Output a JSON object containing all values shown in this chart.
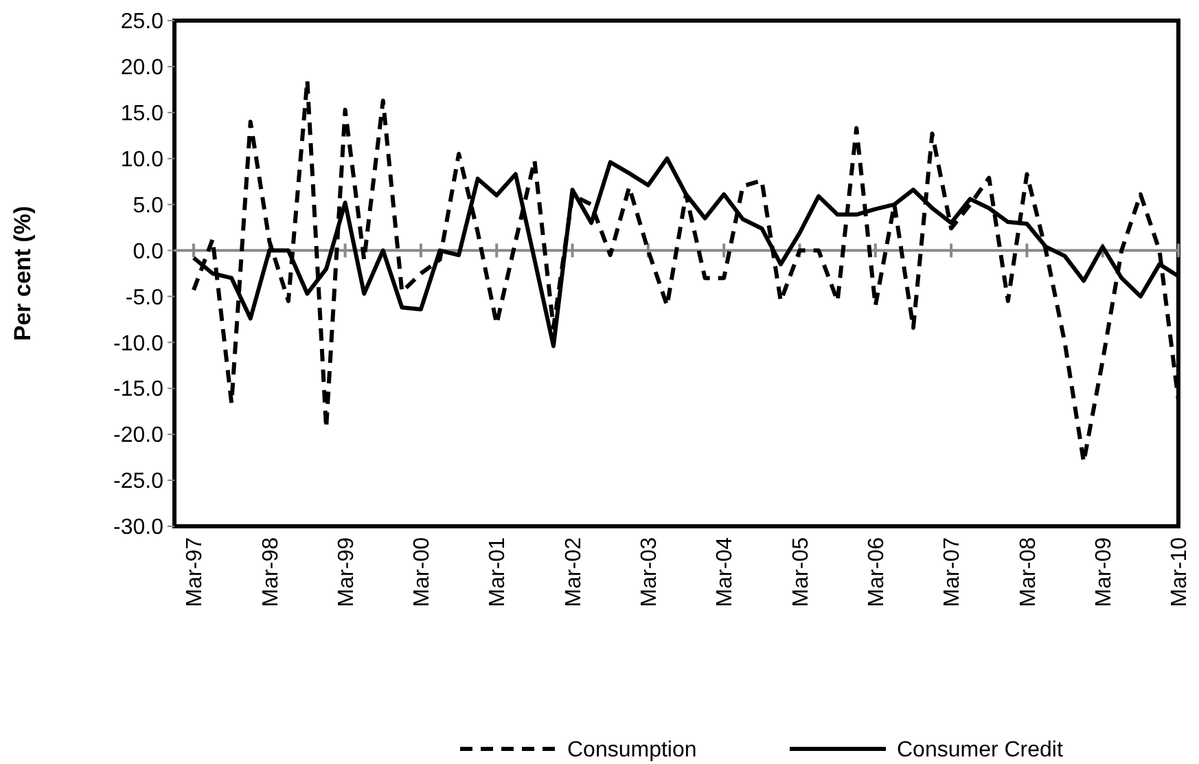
{
  "chart_data": {
    "type": "line",
    "ylabel": "Per cent (%)",
    "categories": [
      "Mar-97",
      null,
      null,
      null,
      "Mar-98",
      null,
      null,
      null,
      "Mar-99",
      null,
      null,
      null,
      "Mar-00",
      null,
      null,
      null,
      "Mar-01",
      null,
      null,
      null,
      "Mar-02",
      null,
      null,
      null,
      "Mar-03",
      null,
      null,
      null,
      "Mar-04",
      null,
      null,
      null,
      "Mar-05",
      null,
      null,
      null,
      "Mar-06",
      null,
      null,
      null,
      "Mar-07",
      null,
      null,
      null,
      "Mar-08",
      null,
      null,
      null,
      "Mar-09",
      null,
      null,
      null,
      "Mar-10"
    ],
    "ylim": [
      -30,
      25
    ],
    "yticks": [
      {
        "value": -30,
        "label": "-30.0"
      },
      {
        "value": -25,
        "label": "-25.0"
      },
      {
        "value": -20,
        "label": "-20.0"
      },
      {
        "value": -15,
        "label": "-15.0"
      },
      {
        "value": -10,
        "label": "-10.0"
      },
      {
        "value": -5,
        "label": "-5.0"
      },
      {
        "value": 0,
        "label": "0.0"
      },
      {
        "value": 5,
        "label": "5.0"
      },
      {
        "value": 10,
        "label": "10.0"
      },
      {
        "value": 15,
        "label": "15.0"
      },
      {
        "value": 20,
        "label": "20.0"
      },
      {
        "value": 25,
        "label": "25.0"
      }
    ],
    "legend": "bottom",
    "marker": "none",
    "series": [
      {
        "name": "Consumption",
        "color": "#000000",
        "line_style": "dashed",
        "values": [
          -4.3,
          1.2,
          -16.6,
          14,
          1,
          -5.5,
          18.5,
          -19.3,
          15.3,
          -1,
          16.3,
          -4.5,
          -2.5,
          -1,
          10.5,
          2,
          -8,
          1,
          9.8,
          -8.4,
          6,
          5,
          -0.5,
          6.9,
          0,
          -6,
          6.1,
          -3,
          -3,
          7,
          7.6,
          -5.5,
          0,
          0,
          -5.5,
          13.3,
          -6,
          5,
          -8.4,
          12.7,
          2.4,
          5,
          7.9,
          -5.5,
          8.3,
          0,
          -10,
          -23,
          -12,
          0,
          6.1,
          0,
          -16.3
        ]
      },
      {
        "name": "Consumer Credit",
        "color": "#000000",
        "line_style": "solid",
        "values": [
          -0.8,
          -2.5,
          -3,
          -7.4,
          0,
          0,
          -4.7,
          -2,
          5.2,
          -4.7,
          0,
          -6.2,
          -6.4,
          0,
          -0.5,
          7.8,
          6,
          8.3,
          -1,
          -10.4,
          6.6,
          3,
          9.6,
          8.4,
          7.1,
          10,
          6.1,
          3.5,
          6.1,
          3.4,
          2.4,
          -1.5,
          1.9,
          5.9,
          3.9,
          3.9,
          4.5,
          5,
          6.6,
          4.6,
          3,
          5.6,
          4.6,
          3.1,
          2.9,
          0.4,
          -0.6,
          -3.3,
          0.4,
          -3,
          -5,
          -1.5,
          -2.8
        ]
      }
    ]
  }
}
